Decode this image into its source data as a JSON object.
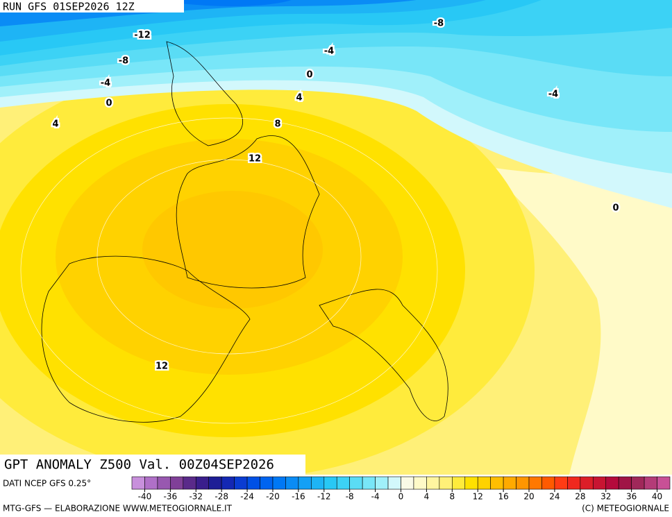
{
  "header": {
    "run": "RUN GFS 01SEP2026 12Z"
  },
  "title": "GPT ANOMALY Z500 Val. 00Z04SEP2026",
  "contour_labels": [
    -12,
    -8,
    -4,
    0,
    4,
    -8,
    -4,
    0,
    4,
    8,
    12,
    -4,
    0,
    12
  ],
  "colorbar": {
    "range": [
      -42,
      42
    ],
    "colors": [
      "#c890dc",
      "#b070c8",
      "#9858b0",
      "#804098",
      "#5a2a8a",
      "#3a1e8c",
      "#1e1e96",
      "#1428b4",
      "#0a3cd2",
      "#0050e6",
      "#0064f0",
      "#0078f5",
      "#0a8cf5",
      "#14a0f5",
      "#1eb4f5",
      "#28c8f5",
      "#3cd2f5",
      "#5adcf5",
      "#78e6f8",
      "#a0f0fa",
      "#d2f8fc",
      "#fafae6",
      "#fffac8",
      "#fff5a0",
      "#fff078",
      "#ffeb3c",
      "#ffe100",
      "#ffd200",
      "#ffbe00",
      "#ffaa00",
      "#ff9600",
      "#ff7800",
      "#ff5a00",
      "#ff3c14",
      "#f0281e",
      "#dc1e28",
      "#c81432",
      "#b40a3c",
      "#a01446",
      "#a0285a",
      "#b43c78",
      "#c85096"
    ],
    "ticks": [
      -40,
      -36,
      -32,
      -28,
      -24,
      -20,
      -16,
      -12,
      -8,
      -4,
      0,
      4,
      8,
      12,
      16,
      20,
      24,
      28,
      32,
      36,
      40
    ]
  },
  "footer": {
    "source": "DATI NCEP GFS 0.25°",
    "credit": "MTG-GFS — ELABORAZIONE WWW.METEOGIORNALE.IT",
    "copyright": "(C) METEOGIORNALE"
  }
}
